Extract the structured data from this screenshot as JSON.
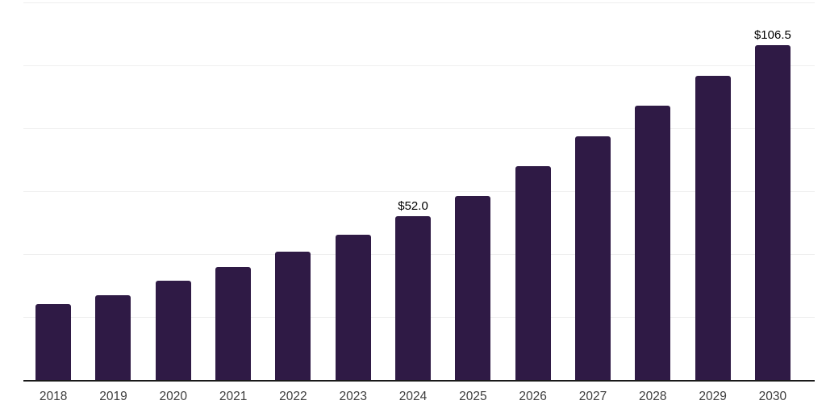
{
  "chart_data": {
    "type": "bar",
    "title": "",
    "xlabel": "",
    "ylabel": "",
    "legend": "none",
    "grid": "horizontal",
    "ylim": [
      0,
      120
    ],
    "grid_step": 20,
    "categories": [
      "2018",
      "2019",
      "2020",
      "2021",
      "2022",
      "2023",
      "2024",
      "2025",
      "2026",
      "2027",
      "2028",
      "2029",
      "2030"
    ],
    "values": [
      24.1,
      27.0,
      31.6,
      35.8,
      40.8,
      46.2,
      52.0,
      58.6,
      68.0,
      77.4,
      87.3,
      96.7,
      106.5
    ],
    "bar_labels": [
      "",
      "",
      "",
      "",
      "",
      "",
      "$52.0",
      "",
      "",
      "",
      "",
      "",
      "$106.5"
    ],
    "labeled_points": [
      {
        "category": "2024",
        "label": "$52.0"
      },
      {
        "category": "2030",
        "label": "$106.5"
      }
    ],
    "colors": {
      "bar": "#2f1a45",
      "grid_line": "#efefef",
      "axis_line": "#1a1a1a",
      "tick_label": "#3d3d3d",
      "data_label": "#000000",
      "background": "#ffffff"
    }
  }
}
